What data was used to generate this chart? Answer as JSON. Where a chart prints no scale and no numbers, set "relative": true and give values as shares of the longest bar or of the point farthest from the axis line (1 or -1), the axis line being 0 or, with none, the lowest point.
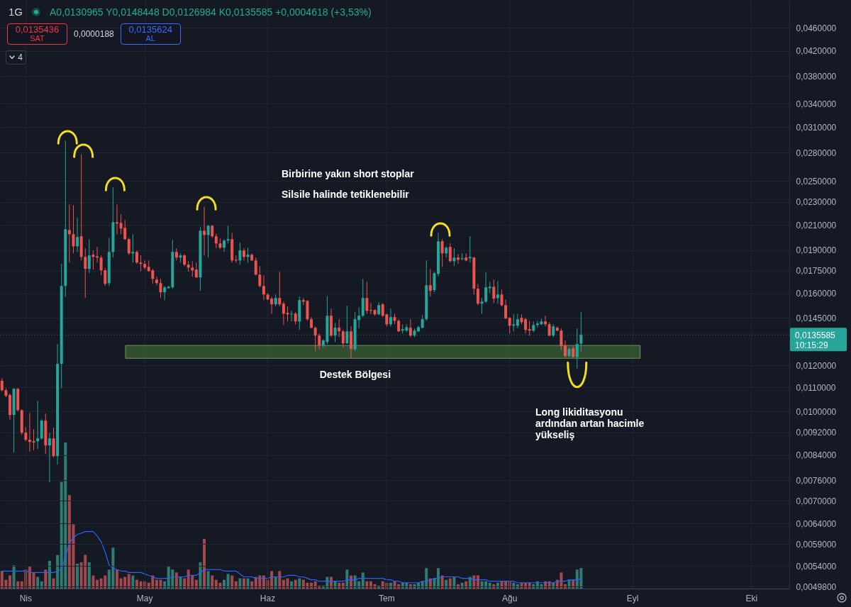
{
  "chart_data": [
    {
      "type": "candlestick",
      "title": "1G",
      "subtitle": "A0,0130965 Y0,0148448 D0,0126984 K0,0135585 +0,0004618 (+3,53%)",
      "categories": [
        null,
        null,
        null,
        null,
        null,
        null,
        "Nis",
        null,
        null,
        null,
        null,
        null,
        null,
        null,
        null,
        null,
        null,
        null,
        null,
        null,
        null,
        null,
        null,
        null,
        null,
        null,
        null,
        null,
        null,
        null,
        null,
        null,
        null,
        null,
        null,
        null,
        "May",
        null,
        null,
        null,
        null,
        null,
        null,
        null,
        null,
        null,
        null,
        null,
        null,
        null,
        null,
        null,
        null,
        null,
        null,
        null,
        null,
        null,
        null,
        null,
        null,
        null,
        null,
        null,
        null,
        null,
        null,
        "Haz",
        null,
        null,
        null,
        null,
        null,
        null,
        null,
        null,
        null,
        null,
        null,
        null,
        null,
        null,
        null,
        null,
        null,
        null,
        null,
        null,
        null,
        null,
        null,
        null,
        null,
        null,
        null,
        null,
        null,
        "Tem",
        null,
        null,
        null,
        null,
        null,
        null,
        null,
        null,
        null,
        null,
        null,
        null,
        null,
        null,
        null,
        null,
        null,
        null,
        null,
        null,
        null,
        null,
        null,
        null,
        null,
        null,
        null,
        null,
        null,
        null,
        "Ağu",
        null,
        null,
        null,
        null,
        null,
        null,
        null,
        null,
        null,
        null,
        null,
        null,
        null,
        null,
        null,
        null,
        null,
        null,
        null,
        null,
        null,
        null,
        null,
        null,
        null,
        null,
        null,
        null,
        null,
        null,
        "Eyl",
        null,
        null,
        null,
        null,
        null,
        null,
        null,
        null,
        null,
        null,
        null,
        null,
        null,
        null,
        null,
        null,
        null,
        null,
        null,
        null,
        null,
        null,
        null,
        null,
        null,
        null,
        null,
        null,
        null,
        "Eki",
        null,
        null,
        null,
        null,
        null,
        null,
        null,
        null,
        null
      ],
      "ohlc": [
        [
          0.01129,
          0.01141,
          0.01082,
          0.01088
        ],
        [
          0.01088,
          0.01097,
          0.01058,
          0.01064
        ],
        [
          0.01067,
          0.01073,
          0.009664,
          0.009857
        ],
        [
          0.009857,
          0.01097,
          0.008487,
          0.01094
        ],
        [
          0.01094,
          0.01097,
          0.009997,
          0.01005
        ],
        [
          0.01005,
          0.01008,
          0.009108,
          0.009185
        ],
        [
          0.009185,
          0.009395,
          0.00888,
          0.00893
        ],
        [
          0.00893,
          0.009941,
          0.008511,
          0.008855
        ],
        [
          0.00888,
          0.009316,
          0.008559,
          0.00883
        ],
        [
          0.00888,
          0.01043,
          0.008608,
          0.00898
        ],
        [
          0.00898,
          0.009692,
          0.00893,
          0.009637
        ],
        [
          0.009637,
          0.009913,
          0.00844,
          0.008731
        ],
        [
          0.008731,
          0.009185,
          0.007539,
          0.00898
        ],
        [
          0.00898,
          0.009368,
          0.008322,
          0.008369
        ],
        [
          0.008369,
          0.01307,
          0.00809,
          0.01208
        ],
        [
          0.01208,
          0.01798,
          0.01097,
          0.01647
        ],
        [
          0.01647,
          0.02937,
          0.01579,
          0.02064
        ],
        [
          0.02058,
          0.02278,
          0.01808,
          0.02024
        ],
        [
          0.02024,
          0.02272,
          0.01875,
          0.01929
        ],
        [
          0.01929,
          0.02159,
          0.01886,
          0.02001
        ],
        [
          0.02007,
          0.02784,
          0.01823,
          0.01849
        ],
        [
          0.01849,
          0.01913,
          0.0157,
          0.01763
        ],
        [
          0.01763,
          0.01984,
          0.01733,
          0.0186
        ],
        [
          0.01865,
          0.01897,
          0.01758,
          0.01849
        ],
        [
          0.01854,
          0.01924,
          0.01808,
          0.01844
        ],
        [
          0.01844,
          0.0186,
          0.01718,
          0.01753
        ],
        [
          0.01753,
          0.01768,
          0.01647,
          0.01661
        ],
        [
          0.01666,
          0.01995,
          0.01647,
          0.01886
        ],
        [
          0.01886,
          0.02438,
          0.01844,
          0.02123
        ],
        [
          0.02123,
          0.02278,
          0.02024,
          0.02111
        ],
        [
          0.02117,
          0.0219,
          0.02024,
          0.0207
        ],
        [
          0.02076,
          0.02141,
          0.01979,
          0.01984
        ],
        [
          0.01984,
          0.01995,
          0.01865,
          0.01875
        ],
        [
          0.01875,
          0.02024,
          0.01808,
          0.01886
        ],
        [
          0.01886,
          0.01897,
          0.01798,
          0.01808
        ],
        [
          0.01808,
          0.0186,
          0.01748,
          0.01798
        ],
        [
          0.01798,
          0.01823,
          0.01758,
          0.01772
        ],
        [
          0.01777,
          0.01823,
          0.01743,
          0.01748
        ],
        [
          0.01753,
          0.01763,
          0.01661,
          0.01694
        ],
        [
          0.01689,
          0.01709,
          0.01652,
          0.01666
        ],
        [
          0.01666,
          0.01694,
          0.0157,
          0.01606
        ],
        [
          0.01606,
          0.01647,
          0.01557,
          0.01638
        ],
        [
          0.01633,
          0.01647,
          0.01629,
          0.01642
        ],
        [
          0.01638,
          0.01979,
          0.01629,
          0.01886
        ],
        [
          0.01886,
          0.01913,
          0.01823,
          0.01844
        ],
        [
          0.01844,
          0.01875,
          0.01808,
          0.0186
        ],
        [
          0.0186,
          0.0187,
          0.01783,
          0.01793
        ],
        [
          0.01793,
          0.01818,
          0.01743,
          0.01772
        ],
        [
          0.01772,
          0.01818,
          0.01709,
          0.01753
        ],
        [
          0.01758,
          0.01808,
          0.01699,
          0.01704
        ],
        [
          0.01704,
          0.02082,
          0.01615,
          0.02052
        ],
        [
          0.02052,
          0.02259,
          0.0186,
          0.02018
        ],
        [
          0.02018,
          0.02099,
          0.01844,
          0.02093
        ],
        [
          0.02093,
          0.02099,
          0.01995,
          0.02007
        ],
        [
          0.02007,
          0.02029,
          0.01913,
          0.01951
        ],
        [
          0.01951,
          0.0199,
          0.01907,
          0.01918
        ],
        [
          0.01918,
          0.01984,
          0.01886,
          0.01973
        ],
        [
          0.01973,
          0.02093,
          0.01951,
          0.01984
        ],
        [
          0.01984,
          0.02035,
          0.01808,
          0.01823
        ],
        [
          0.01828,
          0.0186,
          0.01808,
          0.01823
        ],
        [
          0.01823,
          0.01956,
          0.01793,
          0.01897
        ],
        [
          0.01897,
          0.01913,
          0.01823,
          0.01849
        ],
        [
          0.01849,
          0.01918,
          0.01808,
          0.01865
        ],
        [
          0.01865,
          0.01875,
          0.01818,
          0.01823
        ],
        [
          0.01823,
          0.01844,
          0.01718,
          0.01723
        ],
        [
          0.01723,
          0.01783,
          0.01638,
          0.01647
        ],
        [
          0.01647,
          0.01718,
          0.01557,
          0.01592
        ],
        [
          0.01592,
          0.01601,
          0.01557,
          0.01561
        ],
        [
          0.01566,
          0.01579,
          0.01475,
          0.01531
        ],
        [
          0.01531,
          0.01592,
          0.01518,
          0.0157
        ],
        [
          0.0157,
          0.01743,
          0.01518,
          0.01531
        ],
        [
          0.01535,
          0.01548,
          0.0141,
          0.01475
        ],
        [
          0.0148,
          0.01518,
          0.0143,
          0.01471
        ],
        [
          0.01471,
          0.01492,
          0.0143,
          0.01475
        ],
        [
          0.01475,
          0.01484,
          0.01414,
          0.0143
        ],
        [
          0.0143,
          0.01579,
          0.01383,
          0.01557
        ],
        [
          0.01557,
          0.0157,
          0.01526,
          0.01548
        ],
        [
          0.01552,
          0.01557,
          0.01434,
          0.01443
        ],
        [
          0.01443,
          0.01455,
          0.01391,
          0.01395
        ],
        [
          0.01395,
          0.01402,
          0.01271,
          0.01352
        ],
        [
          0.01352,
          0.01363,
          0.01281,
          0.013
        ],
        [
          0.013,
          0.01333,
          0.01289,
          0.01326
        ],
        [
          0.01318,
          0.01583,
          0.01307,
          0.01463
        ],
        [
          0.01463,
          0.01505,
          0.01344,
          0.01352
        ],
        [
          0.01352,
          0.01422,
          0.01318,
          0.01395
        ],
        [
          0.01395,
          0.01443,
          0.01344,
          0.01375
        ],
        [
          0.01375,
          0.01383,
          0.01289,
          0.01311
        ],
        [
          0.01311,
          0.01522,
          0.01307,
          0.01375
        ],
        [
          0.01375,
          0.01402,
          0.01235,
          0.01281
        ],
        [
          0.01281,
          0.01484,
          0.01271,
          0.01443
        ],
        [
          0.01438,
          0.01513,
          0.01391,
          0.01463
        ],
        [
          0.01463,
          0.01694,
          0.01455,
          0.0157
        ],
        [
          0.0157,
          0.01675,
          0.01475,
          0.01492
        ],
        [
          0.01497,
          0.01539,
          0.01471,
          0.01492
        ],
        [
          0.01497,
          0.01501,
          0.01463,
          0.01471
        ],
        [
          0.01471,
          0.01544,
          0.01467,
          0.01526
        ],
        [
          0.01531,
          0.01539,
          0.01455,
          0.01463
        ],
        [
          0.01471,
          0.01475,
          0.01402,
          0.01414
        ],
        [
          0.01414,
          0.01505,
          0.01402,
          0.01455
        ],
        [
          0.01455,
          0.01475,
          0.01414,
          0.01434
        ],
        [
          0.01434,
          0.01443,
          0.01371,
          0.01375
        ],
        [
          0.01379,
          0.01414,
          0.01363,
          0.01387
        ],
        [
          0.01379,
          0.01414,
          0.01371,
          0.01398
        ],
        [
          0.01395,
          0.01443,
          0.01344,
          0.01352
        ],
        [
          0.01352,
          0.01391,
          0.01344,
          0.01379
        ],
        [
          0.01375,
          0.01406,
          0.01371,
          0.01398
        ],
        [
          0.01395,
          0.01467,
          0.01391,
          0.01443
        ],
        [
          0.01443,
          0.01823,
          0.01434,
          0.01652
        ],
        [
          0.01652,
          0.01763,
          0.01579,
          0.01615
        ],
        [
          0.0162,
          0.01743,
          0.01606,
          0.01733
        ],
        [
          0.01728,
          0.02035,
          0.01709,
          0.01967
        ],
        [
          0.01967,
          0.01984,
          0.01777,
          0.01875
        ],
        [
          0.01875,
          0.01929,
          0.01844,
          0.01918
        ],
        [
          0.01924,
          0.01951,
          0.01808,
          0.01818
        ],
        [
          0.01818,
          0.01913,
          0.01783,
          0.01844
        ],
        [
          0.01844,
          0.0187,
          0.01798,
          0.01828
        ],
        [
          0.01833,
          0.01875,
          0.01823,
          0.01839
        ],
        [
          0.01844,
          0.01875,
          0.01818,
          0.01823
        ],
        [
          0.01839,
          0.02007,
          0.01808,
          0.01849
        ],
        [
          0.01844,
          0.01849,
          0.01592,
          0.01629
        ],
        [
          0.01629,
          0.01661,
          0.01526,
          0.01535
        ],
        [
          0.01535,
          0.0157,
          0.01475,
          0.01548
        ],
        [
          0.01548,
          0.01738,
          0.01539,
          0.01638
        ],
        [
          0.01633,
          0.01675,
          0.01601,
          0.01642
        ],
        [
          0.01642,
          0.01689,
          0.01539,
          0.01566
        ],
        [
          0.0157,
          0.0168,
          0.01535,
          0.01592
        ],
        [
          0.01592,
          0.01624,
          0.01518,
          0.01526
        ],
        [
          0.01526,
          0.01561,
          0.01443,
          0.01447
        ],
        [
          0.01451,
          0.01455,
          0.01363,
          0.01406
        ],
        [
          0.01406,
          0.01471,
          0.01375,
          0.01414
        ],
        [
          0.01406,
          0.01475,
          0.01391,
          0.01443
        ],
        [
          0.01451,
          0.01471,
          0.01414,
          0.01426
        ],
        [
          0.01443,
          0.01451,
          0.01363,
          0.01383
        ],
        [
          0.01387,
          0.01434,
          0.01352,
          0.01379
        ],
        [
          0.01379,
          0.0143,
          0.01371,
          0.0141
        ],
        [
          0.0141,
          0.01434,
          0.01395,
          0.01418
        ],
        [
          0.01414,
          0.01447,
          0.0141,
          0.0143
        ],
        [
          0.0143,
          0.01463,
          0.01402,
          0.01414
        ],
        [
          0.01414,
          0.01426,
          0.01348,
          0.01352
        ],
        [
          0.01352,
          0.01414,
          0.01344,
          0.01402
        ],
        [
          0.01395,
          0.01402,
          0.01375,
          0.01379
        ],
        [
          0.01379,
          0.01391,
          0.01278,
          0.01296
        ],
        [
          0.013,
          0.01326,
          0.01239,
          0.01246
        ],
        [
          0.01246,
          0.01289,
          0.01242,
          0.01281
        ],
        [
          0.01285,
          0.01296,
          0.01239,
          0.01242
        ],
        [
          0.01242,
          0.01391,
          0.01184,
          0.01307
        ],
        [
          0.0130965,
          0.0148448,
          0.0126984,
          0.0135585
        ],
        null,
        null,
        null,
        null,
        null,
        null,
        null,
        null,
        null,
        null,
        null,
        null,
        null,
        null,
        null,
        null,
        null,
        null,
        null,
        null,
        null,
        null,
        null,
        null,
        null,
        null,
        null,
        null,
        null,
        null,
        null,
        null,
        null,
        null,
        null,
        null,
        null,
        null,
        null,
        null,
        null,
        null,
        null,
        null,
        null,
        null,
        null,
        null,
        null,
        null,
        null,
        null
      ],
      "colors": [
        "#ef5350",
        "#ef5350",
        "#ef5350",
        "#26a69a",
        "#ef5350",
        "#ef5350",
        "#ef5350",
        "#ef5350",
        "#ef5350",
        "#26a69a",
        "#26a69a",
        "#ef5350",
        "#26a69a",
        "#ef5350",
        "#26a69a",
        "#26a69a",
        "#26a69a",
        "#ef5350",
        "#ef5350",
        "#26a69a",
        "#ef5350",
        "#ef5350",
        "#26a69a",
        "#ef5350",
        "#ef5350",
        "#ef5350",
        "#ef5350",
        "#26a69a",
        "#26a69a",
        "#ef5350",
        "#ef5350",
        "#ef5350",
        "#ef5350",
        "#26a69a",
        "#ef5350",
        "#ef5350",
        "#ef5350",
        "#ef5350",
        "#ef5350",
        "#ef5350",
        "#ef5350",
        "#26a69a",
        "#26a69a",
        "#26a69a",
        "#ef5350",
        "#26a69a",
        "#ef5350",
        "#ef5350",
        "#ef5350",
        "#ef5350",
        "#26a69a",
        "#ef5350",
        "#26a69a",
        "#ef5350",
        "#ef5350",
        "#ef5350",
        "#26a69a",
        "#26a69a",
        "#ef5350",
        "#ef5350",
        "#26a69a",
        "#ef5350",
        "#26a69a",
        "#ef5350",
        "#ef5350",
        "#ef5350",
        "#ef5350",
        "#ef5350",
        "#ef5350",
        "#26a69a",
        "#ef5350",
        "#ef5350",
        "#ef5350",
        "#26a69a",
        "#ef5350",
        "#26a69a",
        "#ef5350",
        "#ef5350",
        "#ef5350",
        "#ef5350",
        "#ef5350",
        "#26a69a",
        "#26a69a",
        "#ef5350",
        "#26a69a",
        "#ef5350",
        "#ef5350",
        "#26a69a",
        "#ef5350",
        "#26a69a",
        "#26a69a",
        "#26a69a",
        "#ef5350",
        "#ef5350",
        "#ef5350",
        "#26a69a",
        "#ef5350",
        "#ef5350",
        "#26a69a",
        "#ef5350",
        "#ef5350",
        "#26a69a",
        "#26a69a",
        "#ef5350",
        "#26a69a",
        "#26a69a",
        "#26a69a",
        "#26a69a",
        "#ef5350",
        "#26a69a",
        "#26a69a",
        "#ef5350",
        "#26a69a",
        "#ef5350",
        "#26a69a",
        "#ef5350",
        "#26a69a",
        "#ef5350",
        "#26a69a",
        "#ef5350",
        "#ef5350",
        "#26a69a",
        "#26a69a",
        "#26a69a",
        "#ef5350",
        "#26a69a",
        "#ef5350",
        "#ef5350",
        "#ef5350",
        "#26a69a",
        "#26a69a",
        "#ef5350",
        "#ef5350",
        "#ef5350",
        "#26a69a",
        "#26a69a",
        "#26a69a",
        "#ef5350",
        "#ef5350",
        "#26a69a",
        "#ef5350",
        "#ef5350",
        "#ef5350",
        "#26a69a",
        "#ef5350",
        "#26a69a",
        "#26a69a",
        null,
        null,
        null,
        null,
        null,
        null,
        null,
        null,
        null,
        null,
        null,
        null,
        null,
        null,
        null,
        null,
        null,
        null,
        null,
        null,
        null,
        null,
        null,
        null,
        null,
        null,
        null,
        null,
        null,
        null,
        null,
        null,
        null,
        null,
        null,
        null,
        null,
        null,
        null,
        null,
        null,
        null,
        null,
        null,
        null,
        null,
        null,
        null,
        null,
        null,
        null,
        null
      ],
      "ylim": [
        0.00494,
        0.0514
      ],
      "log": true,
      "grid": true,
      "yticks": [
        {
          "value": 0.046,
          "label": "0,0460000"
        },
        {
          "value": 0.042,
          "label": "0,0420000"
        },
        {
          "value": 0.038,
          "label": "0,0380000"
        },
        {
          "value": 0.034,
          "label": "0,0340000"
        },
        {
          "value": 0.031,
          "label": "0,0310000"
        },
        {
          "value": 0.028,
          "label": "0,0280000"
        },
        {
          "value": 0.025,
          "label": "0,0250000"
        },
        {
          "value": 0.023,
          "label": "0,0230000"
        },
        {
          "value": 0.021,
          "label": "0,0210000"
        },
        {
          "value": 0.019,
          "label": "0,0190000"
        },
        {
          "value": 0.0175,
          "label": "0,0175000"
        },
        {
          "value": 0.016,
          "label": "0,0160000"
        },
        {
          "value": 0.0145,
          "label": "0,0145000"
        },
        {
          "value": 0.012,
          "label": "0,0120000"
        },
        {
          "value": 0.011,
          "label": "0,0110000"
        },
        {
          "value": 0.01,
          "label": "0,0100000"
        },
        {
          "value": 0.0092,
          "label": "0,0092000"
        },
        {
          "value": 0.0084,
          "label": "0,0084000"
        },
        {
          "value": 0.0076,
          "label": "0,0076000"
        },
        {
          "value": 0.007,
          "label": "0,0070000"
        },
        {
          "value": 0.0064,
          "label": "0,0064000"
        },
        {
          "value": 0.0059,
          "label": "0,0059000"
        },
        {
          "value": 0.0054,
          "label": "0,0054000"
        },
        {
          "value": 0.00498,
          "label": "0,0049800"
        }
      ],
      "ref_lines": [
        {
          "axis": "y",
          "value": 0.0135585,
          "label": "0,0135585",
          "color": "#26a69a",
          "line_style": "dotted"
        }
      ],
      "bands": [
        {
          "axis": "y",
          "from": 0.01235,
          "to": 0.013,
          "label": "Destek Bölgesi",
          "color": "#4a7a3a"
        }
      ],
      "annotations": [
        "Birbirine yakın short stoplar",
        "Silsile halinde tetiklenebilir",
        "Long likiditasyonu ardından artan hacimle yükseliş",
        "0,0135436",
        "SAT",
        "0,0000188",
        "0,0135624",
        "AL",
        "4",
        "10:15:29"
      ]
    },
    {
      "type": "bar",
      "relative": true,
      "categories": [
        null,
        null,
        null,
        null,
        null,
        null,
        null,
        null,
        null,
        null,
        null,
        null,
        null,
        null,
        null,
        null,
        null,
        null,
        null,
        null,
        null,
        null,
        null,
        null,
        null,
        null,
        null,
        null,
        null,
        null,
        null,
        null,
        null,
        null,
        null,
        null,
        null,
        null,
        null,
        null,
        null,
        null,
        null,
        null,
        null,
        null,
        null,
        null,
        null,
        null,
        null,
        null,
        null,
        null,
        null,
        null,
        null,
        null,
        null,
        null,
        null,
        null,
        null,
        null,
        null,
        null,
        null,
        null,
        null,
        null,
        null,
        null,
        null,
        null,
        null,
        null,
        null,
        null,
        null,
        null,
        null,
        null,
        null,
        null,
        null,
        null,
        null,
        null,
        null,
        null,
        null,
        null,
        null,
        null,
        null,
        null,
        null,
        null,
        null,
        null,
        null,
        null,
        null,
        null,
        null,
        null,
        null,
        null,
        null,
        null,
        null,
        null,
        null,
        null,
        null,
        null,
        null,
        null,
        null,
        null,
        null,
        null,
        null,
        null,
        null,
        null,
        null,
        null,
        null,
        null,
        null,
        null,
        null,
        null,
        null,
        null,
        null,
        null,
        null,
        null,
        null,
        null,
        null,
        null,
        null,
        null,
        null,
        null,
        null,
        null,
        null,
        null,
        null,
        null,
        null,
        null,
        null,
        null,
        null,
        null,
        null,
        null,
        null,
        null,
        null,
        null,
        null,
        null,
        null,
        null,
        null,
        null,
        null,
        null,
        null,
        null,
        null,
        null,
        null,
        null,
        null,
        null,
        null,
        null,
        null,
        null,
        null,
        null,
        null,
        null,
        null,
        null,
        null,
        null,
        null,
        null,
        null,
        null,
        null
      ],
      "series": [
        {
          "type": "bar",
          "values": [
            0.12,
            0.06,
            0.09,
            0.16,
            0.05,
            0.05,
            0.13,
            0.15,
            0.11,
            0.08,
            0.05,
            0.13,
            0.19,
            0.07,
            0.23,
            0.73,
            1,
            0.64,
            0.44,
            0.17,
            0.18,
            0.23,
            0.18,
            0.09,
            0.06,
            0.07,
            0.09,
            0.13,
            0.28,
            0.13,
            0.07,
            0.08,
            0.1,
            0.09,
            0.06,
            0.05,
            0.05,
            0.04,
            0.09,
            0.06,
            0.06,
            0.05,
            0.15,
            0.13,
            0.11,
            0.08,
            0.07,
            0.13,
            0.09,
            0.06,
            0.18,
            0.34,
            0.12,
            0.09,
            0.06,
            0.04,
            0.06,
            0.1,
            0.09,
            0.05,
            0.07,
            0.07,
            0.07,
            0.05,
            0.08,
            0.09,
            0.09,
            0.06,
            0.12,
            0.08,
            0.12,
            0.06,
            0.07,
            0.05,
            0.06,
            0.07,
            0.06,
            0.04,
            0.04,
            0.05,
            0.02,
            0.02,
            0.08,
            0.08,
            0.05,
            0.04,
            0.04,
            0.13,
            0.09,
            0.09,
            0.05,
            0.11,
            0.05,
            0.05,
            0.03,
            0.02,
            0.05,
            0.04,
            0.04,
            0.05,
            0.03,
            0.04,
            0.04,
            0.03,
            0.03,
            0.04,
            0.05,
            0.14,
            0.07,
            0.07,
            0.14,
            0.09,
            0.06,
            0.07,
            0.08,
            0.03,
            0.04,
            0.05,
            0.08,
            0.09,
            0.09,
            0.05,
            0.05,
            0.04,
            0.03,
            0.04,
            0.05,
            0.05,
            0.05,
            0.04,
            0.03,
            0.04,
            0.04,
            0.04,
            0.03,
            0.05,
            0.03,
            0.05,
            0.05,
            0.04,
            0.06,
            0.11,
            0.03,
            0.06,
            0.06,
            0.13,
            0.14,
            null,
            null,
            null,
            null,
            null,
            null,
            null,
            null,
            null,
            null,
            null,
            null,
            null,
            null,
            null,
            null,
            null,
            null,
            null,
            null,
            null,
            null,
            null,
            null,
            null,
            null,
            null,
            null,
            null,
            null,
            null,
            null,
            null,
            null,
            null,
            null,
            null,
            null,
            null,
            null,
            null,
            null,
            null,
            null,
            null,
            null,
            null,
            null,
            null,
            null,
            null,
            null
          ],
          "colors": [
            "#a3484d",
            "#a3484d",
            "#a3484d",
            "#2e7d74",
            "#a3484d",
            "#a3484d",
            "#a3484d",
            "#a3484d",
            "#a3484d",
            "#2e7d74",
            "#2e7d74",
            "#a3484d",
            "#2e7d74",
            "#a3484d",
            "#2e7d74",
            "#2e7d74",
            "#2e7d74",
            "#a3484d",
            "#a3484d",
            "#2e7d74",
            "#a3484d",
            "#a3484d",
            "#2e7d74",
            "#a3484d",
            "#a3484d",
            "#a3484d",
            "#a3484d",
            "#2e7d74",
            "#2e7d74",
            "#a3484d",
            "#a3484d",
            "#a3484d",
            "#a3484d",
            "#2e7d74",
            "#a3484d",
            "#a3484d",
            "#a3484d",
            "#a3484d",
            "#a3484d",
            "#a3484d",
            "#a3484d",
            "#2e7d74",
            "#2e7d74",
            "#2e7d74",
            "#a3484d",
            "#2e7d74",
            "#a3484d",
            "#a3484d",
            "#a3484d",
            "#a3484d",
            "#2e7d74",
            "#a3484d",
            "#2e7d74",
            "#a3484d",
            "#a3484d",
            "#a3484d",
            "#2e7d74",
            "#2e7d74",
            "#a3484d",
            "#a3484d",
            "#2e7d74",
            "#a3484d",
            "#2e7d74",
            "#a3484d",
            "#a3484d",
            "#a3484d",
            "#a3484d",
            "#a3484d",
            "#a3484d",
            "#2e7d74",
            "#a3484d",
            "#a3484d",
            "#a3484d",
            "#2e7d74",
            "#a3484d",
            "#2e7d74",
            "#a3484d",
            "#a3484d",
            "#a3484d",
            "#a3484d",
            "#a3484d",
            "#2e7d74",
            "#2e7d74",
            "#a3484d",
            "#2e7d74",
            "#a3484d",
            "#a3484d",
            "#2e7d74",
            "#a3484d",
            "#2e7d74",
            "#2e7d74",
            "#2e7d74",
            "#a3484d",
            "#a3484d",
            "#a3484d",
            "#2e7d74",
            "#a3484d",
            "#a3484d",
            "#2e7d74",
            "#a3484d",
            "#a3484d",
            "#2e7d74",
            "#2e7d74",
            "#a3484d",
            "#2e7d74",
            "#2e7d74",
            "#2e7d74",
            "#2e7d74",
            "#a3484d",
            "#2e7d74",
            "#2e7d74",
            "#a3484d",
            "#2e7d74",
            "#a3484d",
            "#2e7d74",
            "#a3484d",
            "#2e7d74",
            "#a3484d",
            "#2e7d74",
            "#a3484d",
            "#a3484d",
            "#2e7d74",
            "#2e7d74",
            "#2e7d74",
            "#a3484d",
            "#2e7d74",
            "#a3484d",
            "#a3484d",
            "#a3484d",
            "#2e7d74",
            "#2e7d74",
            "#a3484d",
            "#a3484d",
            "#a3484d",
            "#2e7d74",
            "#2e7d74",
            "#2e7d74",
            "#a3484d",
            "#a3484d",
            "#2e7d74",
            "#a3484d",
            "#a3484d",
            "#a3484d",
            "#2e7d74",
            "#a3484d",
            "#2e7d74",
            "#2e7d74",
            null,
            null,
            null,
            null,
            null,
            null,
            null,
            null,
            null,
            null,
            null,
            null,
            null,
            null,
            null,
            null,
            null,
            null,
            null,
            null,
            null,
            null,
            null,
            null,
            null,
            null,
            null,
            null,
            null,
            null,
            null,
            null,
            null,
            null,
            null,
            null,
            null,
            null,
            null,
            null,
            null,
            null,
            null,
            null,
            null,
            null,
            null,
            null,
            null,
            null,
            null,
            null
          ]
        },
        {
          "type": "line",
          "color": "#2962ff",
          "values": [
            0.12,
            0.12,
            0.12,
            0.12,
            0.12,
            0.12,
            0.12,
            0.11,
            0.11,
            0.11,
            0.11,
            0.11,
            0.11,
            0.11,
            0.12,
            0.13,
            0.22,
            0.31,
            0.35,
            0.37,
            0.38,
            0.39,
            0.39,
            0.39,
            0.36,
            0.32,
            0.25,
            0.16,
            0.14,
            0.13,
            0.12,
            0.12,
            0.11,
            0.11,
            0.11,
            0.11,
            0.1,
            0.09,
            0.08,
            0.07,
            0.07,
            0.07,
            0.07,
            0.08,
            0.08,
            0.08,
            0.08,
            0.09,
            0.09,
            0.09,
            0.11,
            0.13,
            0.13,
            0.13,
            0.13,
            0.13,
            0.12,
            0.12,
            0.12,
            0.12,
            0.1,
            0.08,
            0.08,
            0.08,
            0.07,
            0.07,
            0.07,
            0.07,
            0.08,
            0.08,
            0.08,
            0.08,
            0.09,
            0.09,
            0.09,
            0.08,
            0.08,
            0.07,
            0.06,
            0.06,
            0.05,
            0.05,
            0.05,
            0.05,
            0.05,
            0.05,
            0.05,
            0.06,
            0.06,
            0.06,
            0.07,
            0.07,
            0.07,
            0.07,
            0.07,
            0.07,
            0.07,
            0.06,
            0.06,
            0.05,
            0.05,
            0.04,
            0.04,
            0.04,
            0.04,
            0.04,
            0.05,
            0.05,
            0.06,
            0.07,
            0.07,
            0.08,
            0.08,
            0.08,
            0.08,
            0.08,
            0.07,
            0.07,
            0.07,
            0.06,
            0.06,
            0.06,
            0.06,
            0.05,
            0.05,
            0.05,
            0.05,
            0.05,
            0.05,
            0.05,
            0.04,
            0.04,
            0.04,
            0.04,
            0.04,
            0.04,
            0.04,
            0.04,
            0.04,
            0.04,
            0.05,
            0.05,
            0.05,
            0.06,
            0.06,
            0.06,
            0.07,
            null,
            null,
            null,
            null,
            null,
            null,
            null,
            null,
            null,
            null,
            null,
            null,
            null,
            null,
            null,
            null,
            null,
            null,
            null,
            null,
            null,
            null,
            null,
            null,
            null,
            null,
            null,
            null,
            null,
            null,
            null,
            null,
            null,
            null,
            null,
            null,
            null,
            null,
            null,
            null,
            null,
            null,
            null,
            null,
            null,
            null,
            null,
            null,
            null,
            null,
            null,
            null
          ]
        }
      ]
    }
  ]
}
